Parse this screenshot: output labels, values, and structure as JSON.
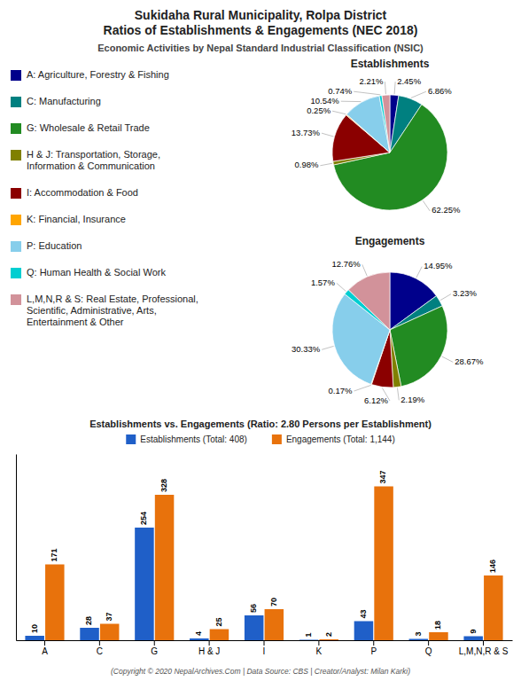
{
  "chart_data": [
    {
      "type": "pie",
      "title": "Sukidaha Rural Municipality, Rolpa District\nRatios of Establishments & Engagements (NEC 2018)",
      "subtitle": "Economic Activities by Nepal Standard Industrial Classification (NSIC)",
      "categories": [
        "A: Agriculture, Forestry & Fishing",
        "C: Manufacturing",
        "G: Wholesale & Retail Trade",
        "H & J: Transportation, Storage,\nInformation & Communication",
        "I: Accommodation & Food",
        "K: Financial, Insurance",
        "P: Education",
        "Q: Human Health & Social Work",
        "L,M,N,R & S: Real Estate, Professional,\nScientific, Administrative, Arts,\nEntertainment & Other"
      ],
      "colors": [
        "#00008B",
        "#008080",
        "#228B22",
        "#808000",
        "#8B0000",
        "#FFA500",
        "#87CEEB",
        "#00CED1",
        "#D2929A"
      ],
      "series": [
        {
          "name": "Establishments",
          "values": [
            2.45,
            6.86,
            62.25,
            0.98,
            13.73,
            0.25,
            10.54,
            0.74,
            2.21
          ],
          "value_labels": [
            "2.45%",
            "6.86%",
            "62.25%",
            "0.98%",
            "13.73%",
            "0.25%",
            "10.54%",
            "0.74%",
            "2.21%"
          ]
        },
        {
          "name": "Engagements",
          "values": [
            14.95,
            3.23,
            28.67,
            2.19,
            6.12,
            0.17,
            30.33,
            1.57,
            12.76
          ],
          "value_labels": [
            "14.95%",
            "3.23%",
            "28.67%",
            "2.19%",
            "6.12%",
            "0.17%",
            "30.33%",
            "1.57%",
            "12.76%"
          ]
        }
      ],
      "data_labels": true,
      "legend": "left"
    },
    {
      "type": "bar",
      "title": "Establishments vs. Engagements (Ratio: 2.80 Persons per Establishment)",
      "categories": [
        "A",
        "C",
        "G",
        "H & J",
        "I",
        "K",
        "P",
        "Q",
        "L,M,N,R & S"
      ],
      "series": [
        {
          "name": "Establishments (Total: 408)",
          "color": "#1F5FC8",
          "values": [
            10,
            28,
            254,
            4,
            56,
            1,
            43,
            3,
            9
          ]
        },
        {
          "name": "Engagements (Total: 1,144)",
          "color": "#E8720C",
          "values": [
            171,
            37,
            328,
            25,
            70,
            2,
            347,
            18,
            146
          ]
        }
      ],
      "ylim": [
        0,
        420
      ],
      "grid": false,
      "tick_labels": "x",
      "data_labels": true,
      "legend": "top",
      "annotations": [
        "(Copyright © 2020 NepalArchives.Com | Data Source: CBS | Creator/Analyst: Milan Karki)"
      ]
    }
  ]
}
